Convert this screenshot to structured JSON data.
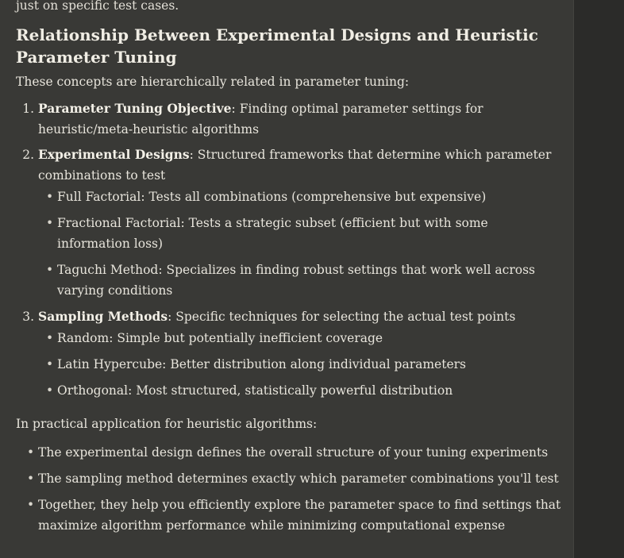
{
  "top_text": "just on specific test cases.",
  "heading": "Relationship Between Experimental Designs and Heuristic Parameter Tuning",
  "intro": "These concepts are hierarchically related in parameter tuning:",
  "items": [
    {
      "term": "Parameter Tuning Objective",
      "text": ": Finding optimal parameter settings for heuristic/meta-heuristic algorithms"
    },
    {
      "term": "Experimental Designs",
      "text": ": Structured frameworks that determine which parameter combinations to test",
      "sub": [
        "Full Factorial: Tests all combinations (comprehensive but expensive)",
        "Fractional Factorial: Tests a strategic subset (efficient but with some information loss)",
        "Taguchi Method: Specializes in finding robust settings that work well across varying conditions"
      ]
    },
    {
      "term": "Sampling Methods",
      "text": ": Specific techniques for selecting the actual test points",
      "sub": [
        "Random: Simple but potentially inefficient coverage",
        "Latin Hypercube: Better distribution along individual parameters",
        "Orthogonal: Most structured, statistically powerful distribution"
      ]
    }
  ],
  "practical_intro": "In practical application for heuristic algorithms:",
  "practical": [
    "The experimental design defines the overall structure of your tuning experiments",
    "The sampling method determines exactly which parameter combinations you'll test",
    "Together, they help you efficiently explore the parameter space to find settings that maximize algorithm performance while minimizing computational expense"
  ]
}
